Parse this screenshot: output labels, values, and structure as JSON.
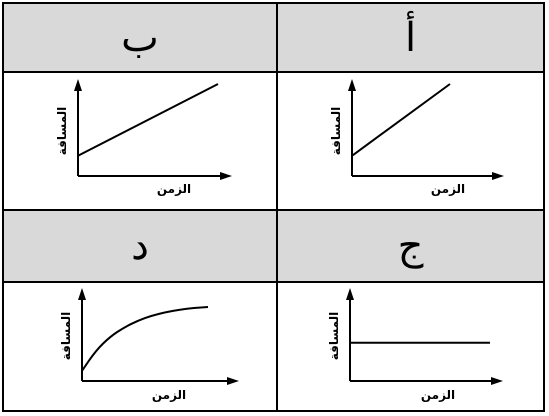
{
  "panels": [
    {
      "header": "ب",
      "xlabel": "الزمن",
      "ylabel": "المسافة"
    },
    {
      "header": "أ",
      "xlabel": "الزمن",
      "ylabel": "المسافة"
    },
    {
      "header": "د",
      "xlabel": "الزمن",
      "ylabel": "المسافة"
    },
    {
      "header": "ج",
      "xlabel": "الزمن",
      "ylabel": "المسافة"
    }
  ],
  "chart_data": [
    {
      "type": "line",
      "shape": "linear",
      "x": [
        0,
        1
      ],
      "y": [
        0.22,
        1.0
      ],
      "xlabel": "الزمن",
      "ylabel": "المسافة"
    },
    {
      "type": "line",
      "shape": "linear",
      "x": [
        0,
        0.7
      ],
      "y": [
        0.22,
        1.0
      ],
      "xlabel": "الزمن",
      "ylabel": "المسافة"
    },
    {
      "type": "line",
      "shape": "curve",
      "x": [
        0,
        0.1,
        0.2,
        0.3,
        0.4,
        0.5,
        0.6,
        0.7,
        0.8,
        0.9
      ],
      "y": [
        0.12,
        0.36,
        0.52,
        0.63,
        0.71,
        0.77,
        0.81,
        0.84,
        0.86,
        0.87
      ],
      "xlabel": "الزمن",
      "ylabel": "المسافة"
    },
    {
      "type": "line",
      "shape": "constant",
      "x": [
        0,
        1
      ],
      "y": [
        0.45,
        0.45
      ],
      "xlabel": "الزمن",
      "ylabel": "المسافة"
    }
  ]
}
